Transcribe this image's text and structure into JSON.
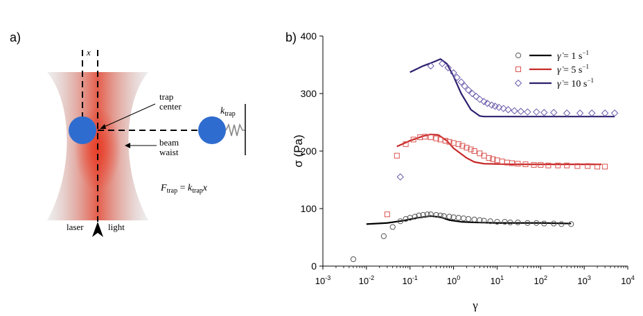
{
  "panel_a": {
    "label": "a)",
    "x_axis_label": "x",
    "trap_center_line1": "trap",
    "trap_center_line2": "center",
    "beam_waist_line1": "beam",
    "beam_waist_line2": "waist",
    "k_symbol": "k",
    "k_subscript": "trap",
    "formula": {
      "F": "F",
      "F_sub": "trap",
      "eq": " = ",
      "k": "k",
      "k_sub": "trap",
      "x": "x"
    },
    "laser_label": "laser",
    "light_label": "light",
    "colors": {
      "bead": "#2f6ccf",
      "beam": "#e0402a",
      "beam_edge": "#b8b8b8"
    }
  },
  "panel_b": {
    "label": "b)",
    "chart_data": {
      "type": "scatter",
      "x_scale": "log",
      "xlim": [
        0.001,
        10000
      ],
      "ylim": [
        0,
        400
      ],
      "xlabel": "γ",
      "ylabel": "σ (Pa)",
      "x_ticks": [
        {
          "base": "10",
          "exp": "-3",
          "v": 0.001
        },
        {
          "base": "10",
          "exp": "-2",
          "v": 0.01
        },
        {
          "base": "10",
          "exp": "-1",
          "v": 0.1
        },
        {
          "base": "10",
          "exp": "0",
          "v": 1
        },
        {
          "base": "10",
          "exp": "1",
          "v": 10
        },
        {
          "base": "10",
          "exp": "2",
          "v": 100
        },
        {
          "base": "10",
          "exp": "3",
          "v": 1000
        },
        {
          "base": "10",
          "exp": "4",
          "v": 10000
        }
      ],
      "y_ticks": [
        0,
        100,
        200,
        300,
        400
      ],
      "legend_position": "top-right",
      "series": [
        {
          "legend_rate": "1",
          "marker": "circle",
          "marker_color": "#555555",
          "line_color": "#000000",
          "points": [
            [
              0.005,
              12
            ],
            [
              0.025,
              52
            ],
            [
              0.04,
              68
            ],
            [
              0.06,
              78
            ],
            [
              0.08,
              82
            ],
            [
              0.1,
              84
            ],
            [
              0.13,
              86
            ],
            [
              0.16,
              88
            ],
            [
              0.2,
              89
            ],
            [
              0.25,
              90
            ],
            [
              0.3,
              90
            ],
            [
              0.4,
              89
            ],
            [
              0.5,
              88
            ],
            [
              0.6,
              87
            ],
            [
              0.8,
              86
            ],
            [
              1,
              85
            ],
            [
              1.3,
              84
            ],
            [
              1.7,
              83
            ],
            [
              2.2,
              82
            ],
            [
              3,
              81
            ],
            [
              4,
              80
            ],
            [
              5,
              79
            ],
            [
              7,
              78
            ],
            [
              10,
              77
            ],
            [
              15,
              77
            ],
            [
              20,
              76
            ],
            [
              30,
              76
            ],
            [
              50,
              75
            ],
            [
              80,
              75
            ],
            [
              120,
              74
            ],
            [
              200,
              74
            ],
            [
              300,
              73
            ],
            [
              500,
              73
            ]
          ],
          "line": [
            [
              0.01,
              73
            ],
            [
              0.03,
              75
            ],
            [
              0.07,
              79
            ],
            [
              0.15,
              84
            ],
            [
              0.3,
              87
            ],
            [
              0.5,
              85
            ],
            [
              0.8,
              80
            ],
            [
              1.5,
              77
            ],
            [
              3,
              76
            ],
            [
              10,
              75
            ],
            [
              100,
              75
            ],
            [
              500,
              74
            ]
          ]
        },
        {
          "legend_rate": "5",
          "marker": "square",
          "marker_color": "#d9534f",
          "line_color": "#c62828",
          "points": [
            [
              0.03,
              90
            ],
            [
              0.05,
              192
            ],
            [
              0.08,
              212
            ],
            [
              0.12,
              220
            ],
            [
              0.17,
              224
            ],
            [
              0.22,
              225
            ],
            [
              0.3,
              224
            ],
            [
              0.4,
              222
            ],
            [
              0.5,
              220
            ],
            [
              0.65,
              218
            ],
            [
              0.8,
              216
            ],
            [
              1,
              214
            ],
            [
              1.3,
              212
            ],
            [
              1.6,
              209
            ],
            [
              2,
              206
            ],
            [
              2.5,
              203
            ],
            [
              3,
              200
            ],
            [
              4,
              196
            ],
            [
              5,
              192
            ],
            [
              6.5,
              188
            ],
            [
              8,
              186
            ],
            [
              10,
              184
            ],
            [
              13,
              182
            ],
            [
              17,
              180
            ],
            [
              22,
              179
            ],
            [
              30,
              178
            ],
            [
              45,
              177
            ],
            [
              70,
              176
            ],
            [
              100,
              176
            ],
            [
              150,
              175
            ],
            [
              250,
              175
            ],
            [
              400,
              175
            ],
            [
              700,
              174
            ],
            [
              1200,
              174
            ],
            [
              2000,
              173
            ],
            [
              3000,
              173
            ]
          ],
          "line": [
            [
              0.05,
              208
            ],
            [
              0.1,
              218
            ],
            [
              0.2,
              226
            ],
            [
              0.3,
              229
            ],
            [
              0.45,
              228
            ],
            [
              0.7,
              218
            ],
            [
              1,
              205
            ],
            [
              2,
              188
            ],
            [
              3,
              181
            ],
            [
              5,
              178
            ],
            [
              20,
              177
            ],
            [
              200,
              177
            ],
            [
              2500,
              177
            ]
          ]
        },
        {
          "legend_rate": "10",
          "marker": "diamond",
          "marker_color": "#6a5aab",
          "line_color": "#2d1f6e",
          "points": [
            [
              0.06,
              155
            ],
            [
              0.3,
              348
            ],
            [
              0.55,
              352
            ],
            [
              0.75,
              345
            ],
            [
              1,
              336
            ],
            [
              1.2,
              328
            ],
            [
              1.5,
              320
            ],
            [
              1.8,
              313
            ],
            [
              2.2,
              306
            ],
            [
              2.7,
              300
            ],
            [
              3.3,
              295
            ],
            [
              4,
              290
            ],
            [
              5,
              286
            ],
            [
              6,
              283
            ],
            [
              7.5,
              280
            ],
            [
              9,
              278
            ],
            [
              11,
              276
            ],
            [
              14,
              274
            ],
            [
              18,
              272
            ],
            [
              25,
              270
            ],
            [
              35,
              269
            ],
            [
              50,
              268
            ],
            [
              80,
              268
            ],
            [
              120,
              267
            ],
            [
              200,
              267
            ],
            [
              400,
              266
            ],
            [
              800,
              266
            ],
            [
              1500,
              266
            ],
            [
              3000,
              266
            ],
            [
              5000,
              266
            ]
          ],
          "line": [
            [
              0.1,
              337
            ],
            [
              0.2,
              348
            ],
            [
              0.35,
              355
            ],
            [
              0.5,
              360
            ],
            [
              0.7,
              352
            ],
            [
              1,
              330
            ],
            [
              1.5,
              300
            ],
            [
              2.5,
              272
            ],
            [
              4,
              261
            ],
            [
              5,
              260
            ],
            [
              50,
              260
            ],
            [
              5000,
              260
            ]
          ]
        }
      ]
    }
  }
}
